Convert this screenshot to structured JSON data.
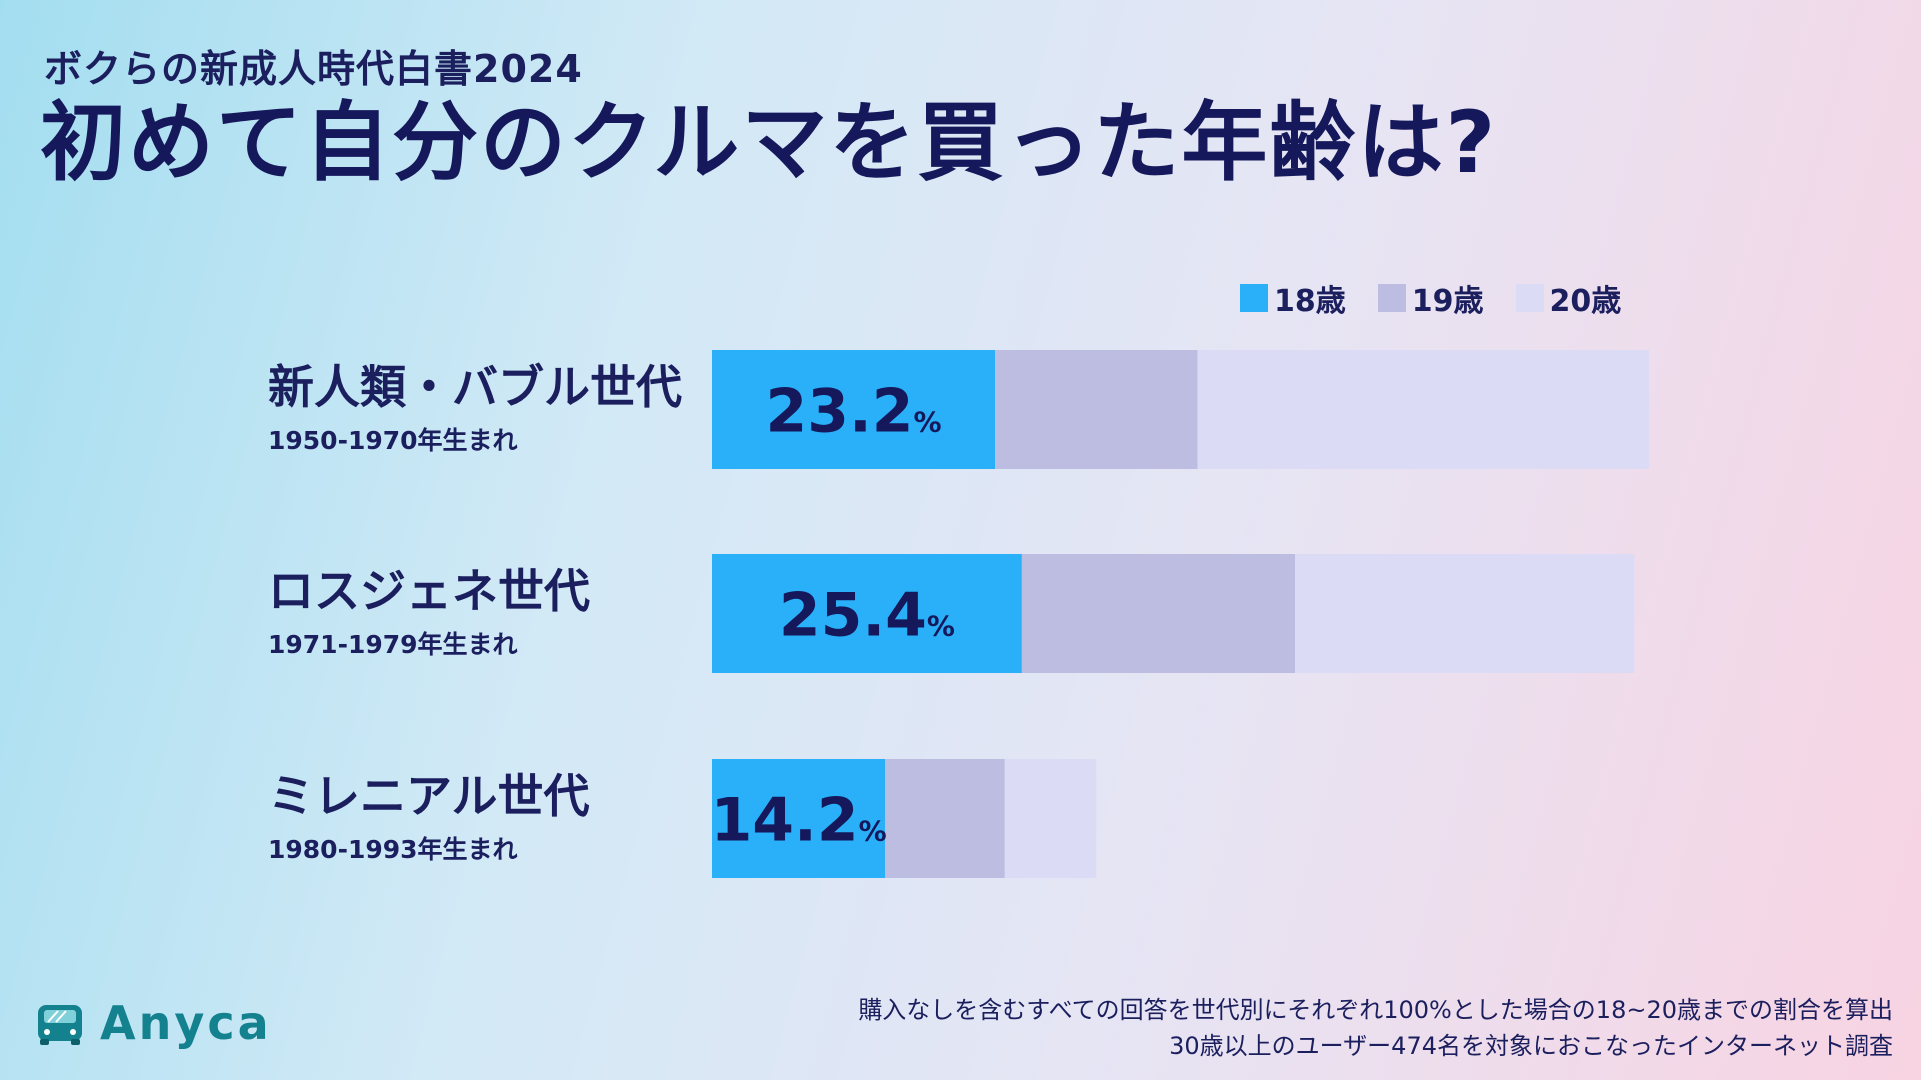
{
  "header": {
    "subtitle": "ボクらの新成人時代白書2024",
    "title": "初めて自分のクルマを買った年齢は?"
  },
  "colors": {
    "age18": "#29b0f9",
    "age19": "#bdbde1",
    "age20": "#dcdbf6",
    "text": "#1b1f5e",
    "brand": "#14818e"
  },
  "legend": {
    "items": [
      {
        "label": "18歳"
      },
      {
        "label": "19歳"
      },
      {
        "label": "20歳"
      }
    ]
  },
  "rows": [
    {
      "name": "新人類・バブル世代",
      "years": "1950-1970年生まれ"
    },
    {
      "name": "ロスジェネ世代",
      "years": "1971-1979年生まれ"
    },
    {
      "name": "ミレニアル世代",
      "years": "1980-1993年生まれ"
    }
  ],
  "chart_data": {
    "type": "bar",
    "orientation": "horizontal",
    "stacked": true,
    "title": "初めて自分のクルマを買った年齢は?",
    "categories": [
      "新人類・バブル世代",
      "ロスジェネ世代",
      "ミレニアル世代"
    ],
    "series": [
      {
        "name": "18歳",
        "values": [
          23.2,
          25.4,
          14.2
        ]
      },
      {
        "name": "19歳",
        "values": [
          16.6,
          22.4,
          9.8
        ]
      },
      {
        "name": "20歳",
        "values": [
          37.0,
          27.8,
          7.5
        ]
      }
    ],
    "data_labels": [
      "23.2%",
      "25.4%",
      "14.2%"
    ],
    "unit": "%",
    "xlim": [
      0,
      100
    ],
    "legend_position": "top-right"
  },
  "footnote": {
    "line1": "購入なしを含むすべての回答を世代別にそれぞれ100%とした場合の18~20歳までの割合を算出",
    "line2": "30歳以上のユーザー474名を対象におこなったインターネット調査"
  },
  "brand": {
    "name": "Anyca",
    "icon": "car-icon"
  }
}
